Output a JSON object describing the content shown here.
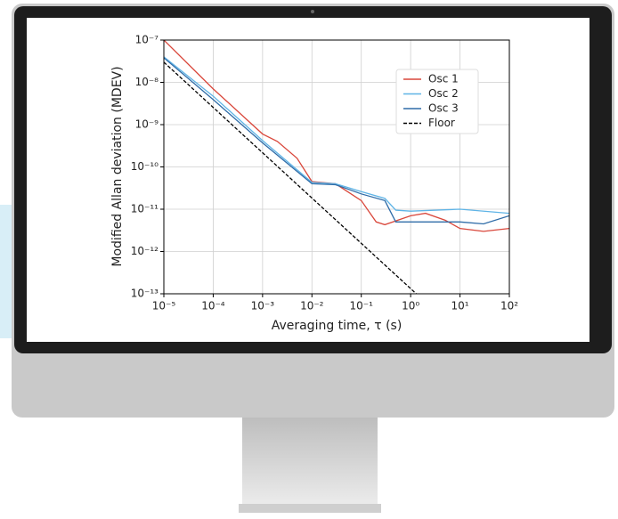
{
  "chart_data": {
    "type": "line",
    "x_label": "Averaging time, τ (s)",
    "y_label": "Modified Allan deviation (MDEV)",
    "xlog": true,
    "ylog": true,
    "grid": true,
    "legend": "upper right",
    "xlim": [
      1e-05,
      100
    ],
    "ylim": [
      1e-13,
      1e-07
    ],
    "xticks": [
      {
        "value": 1e-05,
        "label": "10⁻⁵"
      },
      {
        "value": 0.0001,
        "label": "10⁻⁴"
      },
      {
        "value": 0.001,
        "label": "10⁻³"
      },
      {
        "value": 0.01,
        "label": "10⁻²"
      },
      {
        "value": 0.1,
        "label": "10⁻¹"
      },
      {
        "value": 1,
        "label": "10⁰"
      },
      {
        "value": 10,
        "label": "10¹"
      },
      {
        "value": 100,
        "label": "10²"
      }
    ],
    "yticks": [
      {
        "value": 1e-13,
        "label": "10⁻¹³"
      },
      {
        "value": 1e-12,
        "label": "10⁻¹²"
      },
      {
        "value": 1e-11,
        "label": "10⁻¹¹"
      },
      {
        "value": 1e-10,
        "label": "10⁻¹⁰"
      },
      {
        "value": 1e-09,
        "label": "10⁻⁹"
      },
      {
        "value": 1e-08,
        "label": "10⁻⁸"
      },
      {
        "value": 1e-07,
        "label": "10⁻⁷"
      }
    ],
    "series": [
      {
        "name": "Osc 1",
        "color": "#d9473b",
        "dash": false,
        "x": [
          1e-05,
          0.0001,
          0.001,
          0.002,
          0.005,
          0.01,
          0.03,
          0.1,
          0.2,
          0.3,
          1,
          2,
          5,
          10,
          30,
          100
        ],
        "values": [
          1e-07,
          7e-09,
          6e-10,
          4e-10,
          1.6e-10,
          4.5e-11,
          4e-11,
          1.6e-11,
          5e-12,
          4.3e-12,
          7e-12,
          8e-12,
          5.5e-12,
          3.5e-12,
          3e-12,
          3.5e-12
        ]
      },
      {
        "name": "Osc 2",
        "color": "#5fb4e6",
        "dash": false,
        "x": [
          1e-05,
          0.0001,
          0.001,
          0.01,
          0.03,
          0.1,
          0.3,
          0.5,
          1,
          10,
          100
        ],
        "values": [
          4e-08,
          4.7e-09,
          4.2e-10,
          4.3e-11,
          4e-11,
          2.6e-11,
          1.8e-11,
          9.5e-12,
          9e-12,
          1e-11,
          8e-12
        ]
      },
      {
        "name": "Osc 3",
        "color": "#2f6ca8",
        "dash": false,
        "x": [
          1e-05,
          0.0001,
          0.001,
          0.01,
          0.03,
          0.1,
          0.3,
          0.5,
          1,
          10,
          30,
          100
        ],
        "values": [
          3.8e-08,
          3.9e-09,
          3.7e-10,
          4e-11,
          3.8e-11,
          2.3e-11,
          1.6e-11,
          5e-12,
          5e-12,
          5e-12,
          4.5e-12,
          7e-12
        ]
      },
      {
        "name": "Floor",
        "color": "#000000",
        "dash": true,
        "x": [
          1e-05,
          1.3
        ],
        "values": [
          3e-08,
          1e-13
        ]
      }
    ]
  }
}
